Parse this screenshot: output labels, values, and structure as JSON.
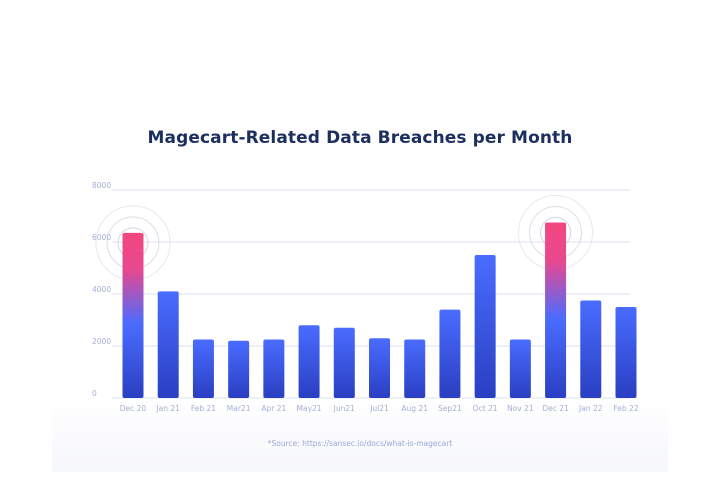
{
  "chart_data": {
    "type": "bar",
    "title": "Magecart-Related Data Breaches per Month",
    "xlabel": "",
    "ylabel": "",
    "categories": [
      "Dec 20",
      "Jan 21",
      "Feb 21",
      "Mar21",
      "Apr 21",
      "May21",
      "Jun21",
      "Jul21",
      "Aug 21",
      "Sep21",
      "Oct 21",
      "Nov 21",
      "Dec 21",
      "Jan 22",
      "Feb 22"
    ],
    "values": [
      6350,
      4100,
      2250,
      2200,
      2250,
      2800,
      2700,
      2300,
      2250,
      3400,
      5500,
      2250,
      6750,
      3750,
      3500
    ],
    "ylim": [
      0,
      8000
    ],
    "yticks": [
      "0",
      "2000",
      "4000",
      "6000",
      "8000"
    ],
    "grid": true,
    "highlighted_categories": [
      "Dec 20",
      "Dec 21"
    ],
    "colors": {
      "bar_top": "#4a6cff",
      "bar_bottom": "#2a3fc2",
      "highlight_top": "#f2477f",
      "grid": "#dde2f3",
      "tick_text": "#a4afd6",
      "ring": "#c8ccdc"
    }
  },
  "source_note": "*Source: https://sansec.io/docs/what-is-magecart"
}
